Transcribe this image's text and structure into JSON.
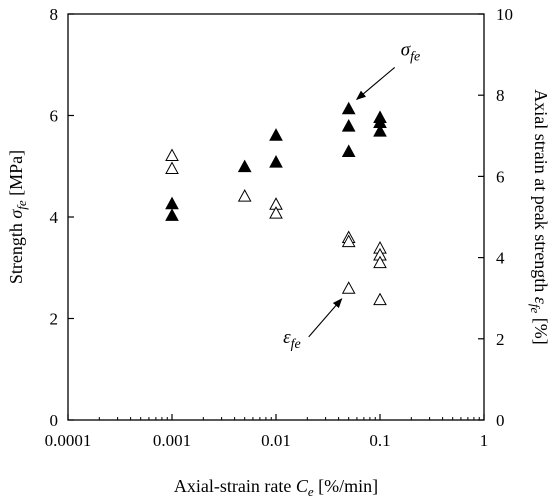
{
  "chart_data": {
    "type": "scatter",
    "title": "",
    "x_scale": "log",
    "xlim": [
      0.0001,
      1
    ],
    "ylim_left": [
      0,
      8
    ],
    "ylim_right": [
      0,
      10
    ],
    "grid": false,
    "xlabel": {
      "text": "Axial-strain rate ",
      "symbol": "C",
      "sub": "e",
      "unit": " [%/min]"
    },
    "ylabel_left": {
      "text": "Strength ",
      "symbol": "σ",
      "sub": "fe",
      "unit": " [MPa]"
    },
    "ylabel_right": {
      "text": "Axial strain at peak strength ",
      "symbol": "ε",
      "sub": "fe",
      "unit": " [%]"
    },
    "x_ticks": [
      {
        "value": 0.0001,
        "label": "0.0001"
      },
      {
        "value": 0.001,
        "label": "0.001"
      },
      {
        "value": 0.01,
        "label": "0.01"
      },
      {
        "value": 0.1,
        "label": "0.1"
      },
      {
        "value": 1,
        "label": "1"
      }
    ],
    "y_ticks_left": [
      {
        "value": 0,
        "label": "0"
      },
      {
        "value": 2,
        "label": "2"
      },
      {
        "value": 4,
        "label": "4"
      },
      {
        "value": 6,
        "label": "6"
      },
      {
        "value": 8,
        "label": "8"
      }
    ],
    "y_ticks_right": [
      {
        "value": 0,
        "label": "0"
      },
      {
        "value": 2,
        "label": "2"
      },
      {
        "value": 4,
        "label": "4"
      },
      {
        "value": 6,
        "label": "6"
      },
      {
        "value": 8,
        "label": "8"
      },
      {
        "value": 10,
        "label": "10"
      }
    ],
    "series": [
      {
        "marker": "filled-triangle",
        "axis": "left",
        "color": "#000000",
        "points": [
          {
            "x": 0.001,
            "y": 4.25
          },
          {
            "x": 0.001,
            "y": 4.02
          },
          {
            "x": 0.005,
            "y": 4.98
          },
          {
            "x": 0.01,
            "y": 5.6
          },
          {
            "x": 0.01,
            "y": 5.07
          },
          {
            "x": 0.05,
            "y": 6.12
          },
          {
            "x": 0.05,
            "y": 5.78
          },
          {
            "x": 0.05,
            "y": 5.28
          },
          {
            "x": 0.1,
            "y": 5.95
          },
          {
            "x": 0.1,
            "y": 5.85
          },
          {
            "x": 0.1,
            "y": 5.68
          }
        ]
      },
      {
        "marker": "open-triangle",
        "axis": "right",
        "color": "#000000",
        "points": [
          {
            "x": 0.001,
            "y": 6.5
          },
          {
            "x": 0.001,
            "y": 6.18
          },
          {
            "x": 0.005,
            "y": 5.5
          },
          {
            "x": 0.01,
            "y": 5.3
          },
          {
            "x": 0.01,
            "y": 5.08
          },
          {
            "x": 0.05,
            "y": 4.48
          },
          {
            "x": 0.05,
            "y": 4.38
          },
          {
            "x": 0.05,
            "y": 3.23
          },
          {
            "x": 0.1,
            "y": 4.22
          },
          {
            "x": 0.1,
            "y": 4.05
          },
          {
            "x": 0.1,
            "y": 3.86
          },
          {
            "x": 0.1,
            "y": 2.95
          }
        ]
      }
    ],
    "annotations": [
      {
        "symbol": "σ",
        "sub": "fe",
        "target_x": 0.05,
        "target_y": 6.12,
        "axis": "left"
      },
      {
        "symbol": "ε",
        "sub": "fe",
        "target_x": 0.05,
        "target_y": 3.23,
        "axis": "right"
      }
    ]
  }
}
